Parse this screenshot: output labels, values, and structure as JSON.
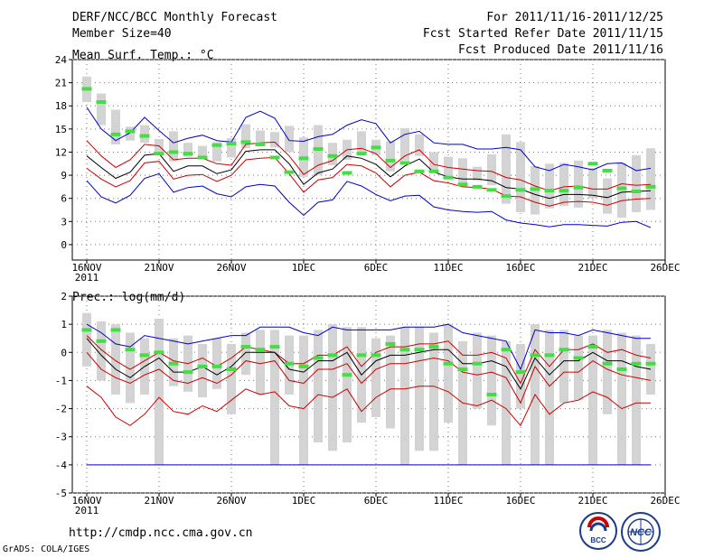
{
  "header": {
    "title": "DERF/NCC/BCC Monthly Forecast",
    "member_size": "Member Size=40",
    "forecast_period": "For 2011/11/16-2011/12/25",
    "fcst_started": "Fcst Started Refer Date 2011/11/15",
    "fcst_produced": "Fcst Produced Date 2011/11/16"
  },
  "footer": {
    "url": "http://cmdp.ncc.cma.gov.cn",
    "grads": "GrADS: COLA/IGES",
    "logo_bcc": "BCC",
    "logo_ncc": "NCC"
  },
  "colors": {
    "envelope": "#0000cc",
    "spread": "#cc0000",
    "mean": "#000000",
    "bar": "#d3d3d3",
    "observed": "#44dd44",
    "grid": "#777777"
  },
  "chart_data": [
    {
      "type": "line",
      "title": "Mean Surf. Temp.: °C",
      "x_tick_labels": [
        "16NOV",
        "21NOV",
        "26NOV",
        "1DEC",
        "6DEC",
        "11DEC",
        "16DEC",
        "21DEC",
        "26DEC"
      ],
      "x_year_label": "2011",
      "ylim": [
        -2,
        24
      ],
      "yticks": [
        0,
        3,
        6,
        9,
        12,
        15,
        18,
        21,
        24
      ],
      "days": 40,
      "series": [
        {
          "name": "max",
          "color_key": "envelope",
          "values": [
            17.8,
            15,
            13.5,
            14.5,
            16.5,
            14.8,
            13.2,
            13.8,
            14.2,
            13.5,
            13.3,
            16.5,
            17.3,
            16.4,
            13.5,
            13.4,
            14,
            14.3,
            15.5,
            16.2,
            15.7,
            13.2,
            14.3,
            14.7,
            13.2,
            13,
            13,
            12.4,
            12.4,
            12.6,
            12.3,
            10.1,
            9.6,
            10.4,
            10.1,
            9.7,
            10.5,
            10.6,
            9.6,
            9.9
          ]
        },
        {
          "name": "upper",
          "color_key": "spread",
          "values": [
            13.5,
            11.5,
            10,
            11,
            13,
            12.8,
            11,
            11.2,
            11.2,
            10.5,
            10.3,
            13,
            13.2,
            13.3,
            11.5,
            9.1,
            10.3,
            10.9,
            12.3,
            12.5,
            11.8,
            10,
            11.5,
            12.3,
            10.4,
            10,
            9.8,
            9.6,
            9.5,
            8.7,
            8.4,
            7.6,
            7,
            7.5,
            7.6,
            7.2,
            7.2,
            7.9,
            7.7,
            7.8
          ]
        },
        {
          "name": "mean",
          "color_key": "mean",
          "values": [
            11.5,
            10,
            8.6,
            9.4,
            11.6,
            11.8,
            9.5,
            10.2,
            10.2,
            9.2,
            9.7,
            12.1,
            12.3,
            12.3,
            10.5,
            7.8,
            9.3,
            9.8,
            11.5,
            11.2,
            10.4,
            8.8,
            10.2,
            11.1,
            9.4,
            8.8,
            8.5,
            8.5,
            8.3,
            7.4,
            7.2,
            6.5,
            6,
            6.5,
            6.5,
            6.4,
            6.1,
            6.8,
            6.9,
            7
          ]
        },
        {
          "name": "lower",
          "color_key": "spread",
          "values": [
            9.9,
            8.5,
            7.5,
            8.3,
            10.6,
            10.8,
            8.5,
            9,
            9.1,
            8.2,
            9,
            11,
            11.2,
            11.3,
            9.2,
            6.8,
            8.4,
            8.7,
            10.4,
            10.2,
            9.3,
            7.5,
            9,
            9.4,
            8.3,
            8,
            7.5,
            7.4,
            7.2,
            6.3,
            6.2,
            5.5,
            5,
            5.5,
            5.6,
            5.5,
            5.1,
            5.7,
            5.9,
            6
          ]
        },
        {
          "name": "min",
          "color_key": "envelope",
          "values": [
            8.3,
            6.2,
            5.4,
            6.4,
            8.6,
            9.2,
            6.8,
            7.4,
            7.6,
            6.6,
            6.2,
            7.5,
            7.8,
            7.6,
            5.5,
            3.8,
            5.5,
            5.8,
            8.2,
            7.6,
            6.5,
            5.7,
            6.3,
            6.4,
            4.9,
            4.5,
            4.3,
            4.2,
            4.3,
            3.2,
            2.8,
            2.6,
            2.3,
            2.6,
            2.6,
            2.5,
            2.4,
            2.9,
            3,
            2.2
          ]
        }
      ],
      "bars": {
        "low": [
          18.5,
          15.5,
          13,
          13.5,
          13.2,
          12,
          10.8,
          11.4,
          11.5,
          10.8,
          11.3,
          12.5,
          13,
          12.6,
          12,
          8.8,
          9,
          10.3,
          11,
          12,
          11.6,
          9.5,
          10.9,
          11.5,
          9.6,
          8.7,
          7.7,
          8.3,
          7.7,
          5.3,
          4.2,
          3.9,
          4.7,
          5,
          4.8,
          6,
          4,
          3.5,
          4.2,
          4.5
        ],
        "high": [
          21.8,
          19.6,
          17.5,
          15.3,
          15.5,
          13.7,
          14.7,
          13.2,
          12.8,
          13.3,
          13.8,
          15.6,
          14.8,
          14.6,
          15.4,
          13.9,
          15.5,
          13.2,
          13.6,
          14.7,
          13.6,
          13.4,
          15.1,
          14.3,
          12,
          11.4,
          11.2,
          10.1,
          11.7,
          14.3,
          13.3,
          10.2,
          10.5,
          10.6,
          10.9,
          9.9,
          8.6,
          10.6,
          11.6,
          12.5
        ]
      },
      "observed": [
        20.2,
        18.5,
        14.3,
        14.7,
        14.1,
        11.8,
        12,
        11.8,
        11.3,
        12.9,
        13.1,
        13.3,
        13,
        11.3,
        9.4,
        11.2,
        12.4,
        11.5,
        9.3,
        11.8,
        12.6,
        10.9,
        10.6,
        9.5,
        9.5,
        8.7,
        7.8,
        7.5,
        7.1,
        6.3,
        7.1,
        7.2,
        7,
        7,
        7.4,
        10.5,
        9.6,
        7.3,
        6.9,
        7.5
      ]
    },
    {
      "type": "line",
      "title": "Prec.: log(mm/d)",
      "x_tick_labels": [
        "16NOV",
        "21NOV",
        "26NOV",
        "1DEC",
        "6DEC",
        "11DEC",
        "16DEC",
        "21DEC",
        "26DEC"
      ],
      "x_year_label": "2011",
      "ylim": [
        -5,
        2
      ],
      "yticks": [
        -5,
        -4,
        -3,
        -2,
        -1,
        0,
        1,
        2
      ],
      "days": 40,
      "series": [
        {
          "name": "max",
          "color_key": "envelope",
          "values": [
            1,
            0.7,
            0.3,
            0.2,
            0.6,
            0.5,
            0.4,
            0.3,
            0.4,
            0.5,
            0.6,
            0.6,
            0.9,
            0.9,
            0.9,
            0.7,
            0.6,
            0.9,
            0.8,
            0.8,
            0.8,
            0.8,
            0.9,
            0.9,
            0.9,
            1,
            0.7,
            0.6,
            0.5,
            0.4,
            -0.6,
            0.8,
            0.7,
            0.7,
            0.6,
            0.8,
            0.7,
            0.6,
            0.5,
            0.5
          ]
        },
        {
          "name": "upper",
          "color_key": "spread",
          "values": [
            0.6,
            0.1,
            -0.3,
            -0.6,
            -0.3,
            0,
            -0.3,
            -0.4,
            -0.2,
            -0.5,
            -0.2,
            0.2,
            0.1,
            0,
            -0.4,
            -0.4,
            -0.1,
            -0.1,
            0.2,
            -0.5,
            0,
            0.2,
            0.2,
            0.3,
            0.3,
            0.4,
            -0.1,
            -0.1,
            0,
            -0.2,
            -1.1,
            0.1,
            -0.5,
            0.1,
            0.1,
            0.3,
            0,
            0.1,
            -0.1,
            -0.2
          ]
        },
        {
          "name": "mean",
          "color_key": "mean",
          "values": [
            0.5,
            -0.1,
            -0.6,
            -0.9,
            -0.5,
            -0.2,
            -0.7,
            -0.7,
            -0.5,
            -0.8,
            -0.5,
            0,
            0,
            0,
            -0.6,
            -0.7,
            -0.3,
            -0.3,
            0,
            -0.8,
            -0.3,
            -0.1,
            -0.1,
            0,
            0.1,
            0.1,
            -0.4,
            -0.4,
            -0.3,
            -0.5,
            -1.3,
            -0.2,
            -0.8,
            -0.3,
            -0.3,
            0,
            -0.3,
            -0.3,
            -0.5,
            -0.6
          ]
        },
        {
          "name": "lower",
          "color_key": "spread",
          "values": [
            0,
            -0.6,
            -0.9,
            -1.1,
            -0.8,
            -0.6,
            -1,
            -1.1,
            -0.9,
            -1.1,
            -0.8,
            -0.3,
            -0.4,
            -0.3,
            -1,
            -1.1,
            -0.6,
            -0.6,
            -0.4,
            -1.1,
            -0.6,
            -0.4,
            -0.4,
            -0.3,
            -0.2,
            -0.3,
            -0.7,
            -0.8,
            -0.7,
            -0.9,
            -1.8,
            -0.5,
            -1.2,
            -0.7,
            -0.7,
            -0.3,
            -0.6,
            -0.8,
            -0.9,
            -1
          ]
        },
        {
          "name": "min",
          "color_key": "spread",
          "values": [
            -1.2,
            -1.6,
            -2.3,
            -2.6,
            -2.2,
            -1.6,
            -2.1,
            -2.2,
            -1.9,
            -2.1,
            -1.7,
            -1.3,
            -1.5,
            -1.4,
            -1.9,
            -2,
            -1.5,
            -1.6,
            -1.3,
            -2.1,
            -1.6,
            -1.3,
            -1.3,
            -1.2,
            -1.2,
            -1.4,
            -1.8,
            -1.9,
            -1.7,
            -2,
            -2.6,
            -1.5,
            -2.2,
            -1.8,
            -1.7,
            -1.4,
            -1.6,
            -2,
            -1.8,
            -1.8
          ]
        },
        {
          "name": "floor",
          "color_key": "envelope",
          "values": [
            -4,
            -4,
            -4,
            -4,
            -4,
            -4,
            -4,
            -4,
            -4,
            -4,
            -4,
            -4,
            -4,
            -4,
            -4,
            -4,
            -4,
            -4,
            -4,
            -4,
            -4,
            -4,
            -4,
            -4,
            -4,
            -4,
            -4,
            -4,
            -4,
            -4,
            -4,
            -4,
            -4,
            -4,
            -4,
            -4,
            -4,
            -4,
            -4,
            -4
          ]
        }
      ],
      "bars": {
        "low": [
          -0.5,
          -1,
          -1.5,
          -1.8,
          -1.5,
          -4,
          -1.2,
          -1.4,
          -1.6,
          -1.3,
          -2.2,
          -0.8,
          -1.5,
          -4,
          -1.5,
          -4,
          -3.2,
          -3.5,
          -3.2,
          -2.5,
          -2.3,
          -2.7,
          -4,
          -3.5,
          -3.5,
          -2.5,
          -4,
          -2,
          -2.6,
          -4,
          -2,
          -4,
          -4,
          -1.8,
          -1.7,
          -4,
          -2.2,
          -4,
          -4,
          -1.5
        ],
        "high": [
          1.4,
          1.1,
          1,
          0.7,
          0.5,
          1.2,
          0.5,
          0.6,
          0.3,
          0.5,
          0.3,
          0.7,
          0.8,
          0.8,
          0.6,
          0.6,
          0.8,
          1,
          0.9,
          0.9,
          0.5,
          0.6,
          0.9,
          0.9,
          0.7,
          1,
          0.4,
          0.7,
          0.6,
          0.4,
          0.3,
          1,
          0.8,
          0.8,
          0.6,
          0.6,
          0.8,
          0.7,
          0.6,
          0.3
        ]
      },
      "observed": [
        0.8,
        0.4,
        0.8,
        0.1,
        -0.1,
        0,
        -0.4,
        -0.7,
        -0.5,
        -0.5,
        -0.6,
        0.2,
        0.1,
        0.2,
        -0.4,
        -0.5,
        -0.2,
        -0.1,
        -0.8,
        -0.1,
        -0.1,
        0.3,
        0.1,
        0.1,
        0.2,
        -0.4,
        -0.6,
        -0.4,
        -1.5,
        0.1,
        -0.7,
        -0.1,
        -0.1,
        0.1,
        -0.2,
        0.2,
        -0.4,
        -0.6,
        -0.4,
        -0.4
      ]
    }
  ]
}
